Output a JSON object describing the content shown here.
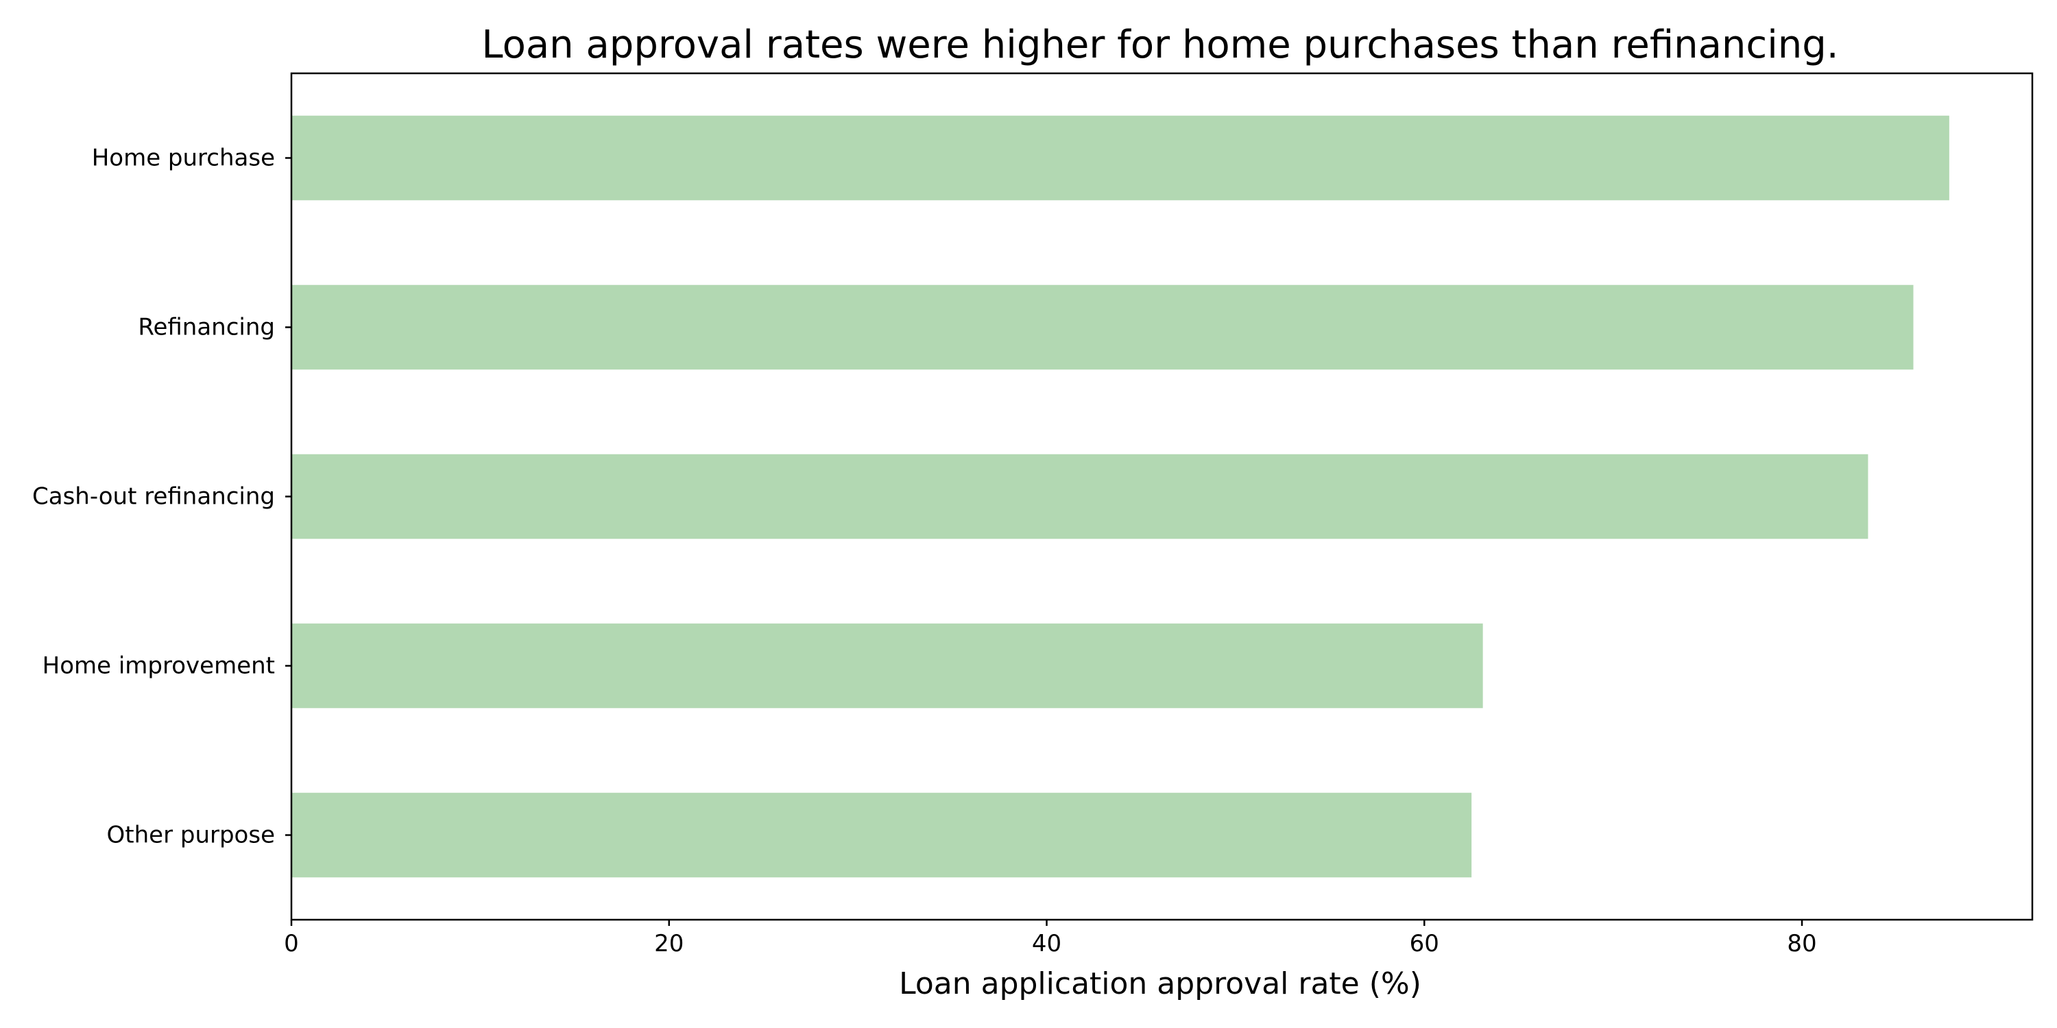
{
  "chart_data": {
    "type": "bar",
    "orientation": "horizontal",
    "title": "Loan approval rates were higher for home purchases than refinancing.",
    "xlabel": "Loan application approval rate (%)",
    "ylabel": "",
    "categories": [
      "Home purchase",
      "Refinancing",
      "Cash-out refinancing",
      "Home improvement",
      "Other purpose"
    ],
    "values": [
      87.8,
      85.9,
      83.5,
      63.1,
      62.5
    ],
    "xlim": [
      0,
      92.2
    ],
    "xticks": [
      0,
      20,
      40,
      60,
      80
    ],
    "bar_color": "#b2d8b2",
    "grid": false,
    "legend": "none"
  }
}
